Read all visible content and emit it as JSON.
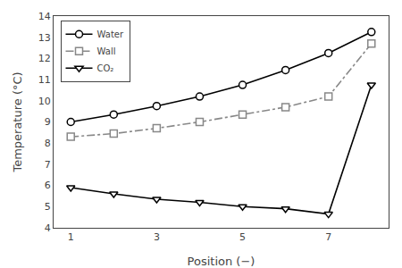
{
  "chart_data": {
    "type": "line",
    "x": [
      1,
      2,
      3,
      4,
      5,
      6,
      7,
      8
    ],
    "series": [
      {
        "name": "Water",
        "color": "#000000",
        "marker": "circle",
        "line_style": "solid",
        "values": [
          9.0,
          9.35,
          9.75,
          10.2,
          10.75,
          11.45,
          12.25,
          13.25
        ]
      },
      {
        "name": "Wall",
        "color": "#888888",
        "marker": "square",
        "line_style": "dashdot",
        "values": [
          8.3,
          8.45,
          8.7,
          9.0,
          9.35,
          9.7,
          10.2,
          12.7
        ]
      },
      {
        "name": "CO₂",
        "color": "#000000",
        "marker": "triangle-down",
        "line_style": "solid",
        "values": [
          5.9,
          5.6,
          5.35,
          5.2,
          5.0,
          4.9,
          4.65,
          10.75
        ]
      }
    ],
    "xlabel": "Position (−)",
    "ylabel": "Temperature (°C)",
    "xlim": [
      0.6,
      8.4
    ],
    "ylim": [
      4,
      14
    ],
    "xticks": [
      1,
      3,
      5,
      7
    ],
    "yticks": [
      4,
      5,
      6,
      7,
      8,
      9,
      10,
      11,
      12,
      13,
      14
    ],
    "grid": false,
    "legend": "upper left"
  }
}
